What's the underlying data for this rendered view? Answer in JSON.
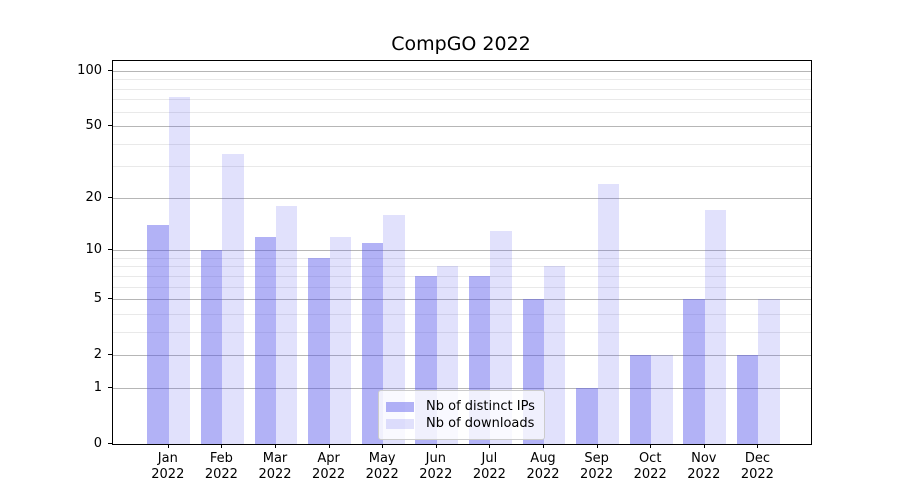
{
  "figure": {
    "title": "CompGO 2022"
  },
  "chart_data": {
    "type": "bar",
    "title": "CompGO 2022",
    "xlabel": "",
    "ylabel": "",
    "categories": [
      "Jan 2022",
      "Feb 2022",
      "Mar 2022",
      "Apr 2022",
      "May 2022",
      "Jun 2022",
      "Jul 2022",
      "Aug 2022",
      "Sep 2022",
      "Oct 2022",
      "Nov 2022",
      "Dec 2022"
    ],
    "series": [
      {
        "name": "Nb of distinct IPs",
        "color": "rgba(80,80,235,0.44)",
        "values": [
          14,
          10,
          12,
          9,
          11,
          7,
          7,
          5,
          1,
          2,
          5,
          2
        ]
      },
      {
        "name": "Nb of downloads",
        "color": "rgba(80,80,235,0.17)",
        "values": [
          72,
          35,
          18,
          12,
          16,
          8,
          13,
          8,
          24,
          2,
          17,
          5
        ]
      }
    ],
    "yscale": "log(1+y)",
    "yticks": [
      0,
      1,
      2,
      5,
      10,
      20,
      50,
      100
    ],
    "yticks_minor": [
      3,
      4,
      6,
      7,
      8,
      9,
      30,
      40,
      60,
      70,
      80,
      90
    ],
    "ylim": [
      0,
      113
    ],
    "grid": true,
    "legend_position": "lower center",
    "colors": {
      "grid_major": "#b6b6b6",
      "grid_minor": "#e9e9e9",
      "axis": "#000000"
    }
  }
}
